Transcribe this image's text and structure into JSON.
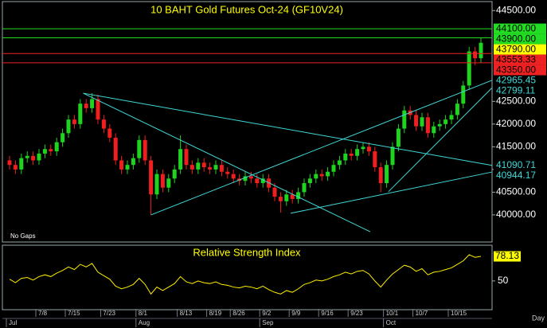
{
  "chart_data": {
    "type": "candlestick",
    "title": "10 BAHT Gold Futures Oct-24 (GF10V24)",
    "note": "No Gaps",
    "x_unit": "Day",
    "categories": [
      null,
      null,
      null,
      null,
      null,
      "7/8",
      null,
      null,
      null,
      null,
      "7/15",
      null,
      null,
      null,
      null,
      null,
      "7/23",
      null,
      null,
      null,
      null,
      null,
      "8/1",
      null,
      null,
      null,
      null,
      null,
      null,
      "8/13",
      null,
      null,
      null,
      null,
      "8/19",
      null,
      null,
      null,
      "8/26",
      null,
      null,
      null,
      null,
      "9/2",
      null,
      null,
      null,
      null,
      "9/9",
      null,
      null,
      null,
      null,
      "9/16",
      null,
      null,
      null,
      null,
      "9/23",
      null,
      null,
      null,
      null,
      null,
      "10/1",
      null,
      null,
      null,
      null,
      "10/7",
      null,
      null,
      null,
      null,
      null,
      "10/15",
      null,
      null,
      null,
      null,
      null
    ],
    "months": [
      "Jul",
      null,
      null,
      null,
      null,
      null,
      null,
      null,
      null,
      null,
      null,
      null,
      null,
      null,
      null,
      null,
      null,
      null,
      null,
      null,
      null,
      null,
      "Aug",
      null,
      null,
      null,
      null,
      null,
      null,
      null,
      null,
      null,
      null,
      null,
      null,
      null,
      null,
      null,
      null,
      null,
      null,
      null,
      null,
      "Sep",
      null,
      null,
      null,
      null,
      null,
      null,
      null,
      null,
      null,
      null,
      null,
      null,
      null,
      null,
      null,
      null,
      null,
      null,
      null,
      null,
      "Oct",
      null,
      null,
      null,
      null,
      null,
      null,
      null,
      null,
      null,
      null,
      null,
      null,
      null,
      null,
      null,
      null
    ],
    "open": [
      41200,
      41100,
      41000,
      41250,
      41300,
      41200,
      41350,
      41450,
      41400,
      41600,
      41800,
      42100,
      42000,
      42450,
      42350,
      42550,
      42100,
      41900,
      41700,
      41200,
      41000,
      41100,
      41250,
      41650,
      41200,
      40450,
      40900,
      40600,
      40800,
      41000,
      41450,
      41100,
      41000,
      41150,
      41050,
      41000,
      41100,
      40950,
      40900,
      40800,
      40750,
      40850,
      40800,
      40700,
      40800,
      40600,
      40400,
      40300,
      40450,
      40350,
      40500,
      40700,
      40800,
      40900,
      40850,
      40950,
      41100,
      41200,
      41350,
      41300,
      41450,
      41500,
      41400,
      41050,
      40700,
      41100,
      41500,
      41900,
      42300,
      42200,
      41950,
      42150,
      41800,
      41950,
      42000,
      42100,
      42200,
      42450,
      42850,
      43600,
      43450
    ],
    "high": [
      41300,
      41200,
      41350,
      41400,
      41400,
      41450,
      41550,
      41550,
      41700,
      41900,
      42200,
      42200,
      42550,
      42550,
      42680,
      42650,
      42200,
      42000,
      41800,
      41300,
      41200,
      41350,
      41750,
      41750,
      41300,
      41000,
      41000,
      40900,
      41100,
      41750,
      41550,
      41200,
      41250,
      41250,
      41150,
      41200,
      41200,
      41050,
      41000,
      40900,
      40950,
      40950,
      40900,
      40900,
      40900,
      40700,
      40500,
      40550,
      40550,
      40600,
      40800,
      40900,
      41000,
      41000,
      41050,
      41200,
      41300,
      41450,
      41450,
      41550,
      41600,
      41600,
      41500,
      41150,
      41200,
      41600,
      42000,
      42400,
      42400,
      42300,
      42250,
      42250,
      42050,
      42100,
      42200,
      42300,
      42550,
      42950,
      43700,
      43700,
      43900
    ],
    "low": [
      41000,
      40900,
      40900,
      41150,
      41100,
      41100,
      41250,
      41300,
      41300,
      41500,
      41700,
      41900,
      41900,
      42250,
      42250,
      42000,
      41800,
      41600,
      41100,
      40900,
      40900,
      41000,
      41150,
      41100,
      40000,
      40350,
      40500,
      40500,
      40700,
      40900,
      41000,
      40900,
      40900,
      40950,
      40900,
      40900,
      40850,
      40800,
      40700,
      40650,
      40650,
      40700,
      40600,
      40600,
      40500,
      40300,
      40050,
      40200,
      40250,
      40250,
      40400,
      40600,
      40700,
      40750,
      40750,
      40850,
      41000,
      41100,
      41200,
      41200,
      41350,
      41300,
      40950,
      40500,
      40600,
      41000,
      41400,
      41800,
      42100,
      41850,
      41850,
      41700,
      41700,
      41850,
      41900,
      42000,
      42100,
      42350,
      42750,
      43300,
      43350
    ],
    "close": [
      41100,
      41000,
      41250,
      41300,
      41200,
      41350,
      41450,
      41400,
      41600,
      41800,
      42100,
      42000,
      42450,
      42350,
      42550,
      42100,
      41900,
      41700,
      41200,
      41000,
      41100,
      41250,
      41650,
      41200,
      40450,
      40900,
      40600,
      40800,
      41000,
      41450,
      41100,
      41000,
      41150,
      41050,
      41000,
      41100,
      40950,
      40900,
      40800,
      40750,
      40850,
      40800,
      40700,
      40800,
      40600,
      40400,
      40300,
      40450,
      40350,
      40500,
      40700,
      40800,
      40900,
      40850,
      40950,
      41100,
      41200,
      41350,
      41300,
      41450,
      41500,
      41400,
      41050,
      40700,
      41100,
      41500,
      41900,
      42300,
      42200,
      41950,
      42150,
      41800,
      41950,
      42000,
      42100,
      42200,
      42450,
      42850,
      43600,
      43450,
      43790
    ],
    "up_color": "#1ed41e",
    "down_color": "#f01e1e",
    "ylim": [
      39420,
      44680
    ],
    "yticks": [
      {
        "value": 44500,
        "label": "44500.00"
      },
      {
        "value": 42500,
        "label": "42500.00"
      },
      {
        "value": 42000,
        "label": "42000.00"
      },
      {
        "value": 41500,
        "label": "41500.00"
      },
      {
        "value": 41000,
        "label": "41000.00"
      },
      {
        "value": 40500,
        "label": "40500.00"
      },
      {
        "value": 40000,
        "label": "40000.00"
      }
    ],
    "levels": [
      {
        "value": 44100,
        "label": "44100.00",
        "color": "#22dd22",
        "line": true
      },
      {
        "value": 43900,
        "label": "43900.00",
        "color": "#22dd22",
        "line": true
      },
      {
        "value": 43790,
        "label": "43790.00",
        "color": "#ffff00",
        "line": false
      },
      {
        "value": 43553.33,
        "label": "43553.33",
        "color": "#ee2222",
        "line": true
      },
      {
        "value": 43350,
        "label": "43350.00",
        "color": "#ee2222",
        "line": true
      }
    ],
    "trendline_color": "#40d8d8",
    "trendlines": [
      {
        "x": [
          12.5,
          81.9
        ],
        "y": [
          42680,
          41090.71
        ]
      },
      {
        "x": [
          24,
          81.9
        ],
        "y": [
          40000,
          42965.45
        ]
      },
      {
        "x": [
          64.3,
          81.9
        ],
        "y": [
          40510,
          42799.11
        ]
      },
      {
        "x": [
          47.7,
          81.9
        ],
        "y": [
          40035,
          40944.17
        ]
      },
      {
        "x": [
          12.5,
          61.2
        ],
        "y": [
          42680,
          39630
        ]
      }
    ],
    "indicator": {
      "type": "line",
      "title": "Relative Strength Index",
      "color": "#ffee00",
      "label_color": "#ffff00",
      "ylim": [
        18,
        90
      ],
      "yticks": [
        50
      ],
      "values": [
        52,
        48,
        53,
        54,
        51,
        55,
        57,
        55,
        59,
        62,
        66,
        63,
        69,
        66,
        70,
        60,
        56,
        52,
        44,
        41,
        43,
        46,
        53,
        46,
        35,
        43,
        39,
        43,
        47,
        55,
        49,
        47,
        50,
        48,
        47,
        49,
        46,
        45,
        43,
        42,
        44,
        43,
        41,
        44,
        40,
        37,
        35,
        39,
        37,
        41,
        46,
        48,
        51,
        50,
        52,
        55,
        57,
        60,
        58,
        61,
        62,
        58,
        50,
        43,
        51,
        58,
        63,
        68,
        66,
        61,
        64,
        57,
        60,
        61,
        63,
        65,
        69,
        73,
        80,
        77,
        78.13
      ]
    }
  }
}
